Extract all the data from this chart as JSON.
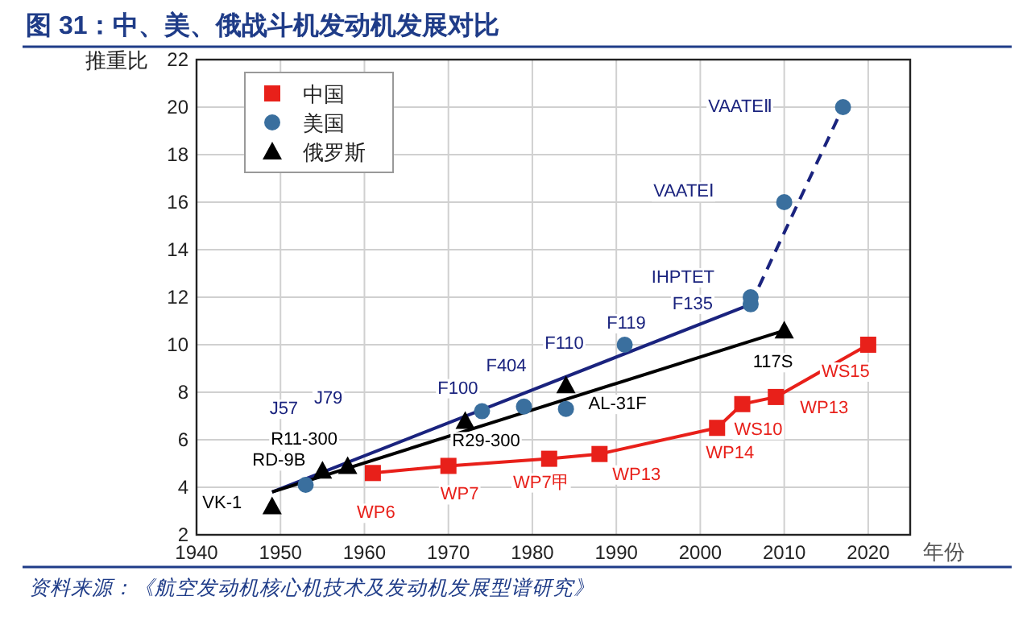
{
  "chart_data": {
    "type": "scatter",
    "title": "图 31：中、美、俄战斗机发动机发展对比",
    "xlabel": "年份",
    "ylabel": "推重比",
    "xlim": [
      1940,
      2025
    ],
    "xticks": [
      1940,
      1950,
      1960,
      1970,
      1980,
      1990,
      2000,
      2010,
      2020
    ],
    "ylim": [
      2,
      22
    ],
    "yticks": [
      2,
      4,
      6,
      8,
      10,
      12,
      14,
      16,
      18,
      20,
      22
    ],
    "grid": true,
    "legend": "top left",
    "series": [
      {
        "name": "中国",
        "type": "line",
        "marker": "square",
        "line_style": "solid",
        "color": "#e8201a",
        "x": [
          1961,
          1970,
          1982,
          1988,
          2002,
          2005,
          2009,
          2020
        ],
        "values": [
          4.6,
          4.9,
          5.2,
          5.4,
          6.5,
          7.5,
          7.8,
          10
        ]
      },
      {
        "name": "美国",
        "marker": "circle",
        "color": "#3a6f9e",
        "x": [
          1953,
          1974,
          1979,
          1984,
          1991,
          2006,
          2006,
          2010,
          2017
        ],
        "values": [
          4.1,
          7.2,
          7.4,
          7.3,
          10,
          11.7,
          12,
          16,
          20
        ]
      },
      {
        "name": "俄罗斯",
        "marker": "triangle",
        "color": "#000000",
        "x": [
          1949,
          1955,
          1958,
          1972,
          1984,
          2010
        ],
        "values": [
          3.2,
          4.7,
          4.9,
          6.8,
          8.3,
          10.6
        ]
      },
      {
        "type": "line",
        "marker": "none",
        "line_style": "solid",
        "color": "#1a237e",
        "x": [
          1949,
          2006
        ],
        "values": [
          3.8,
          11.7
        ]
      },
      {
        "type": "line",
        "marker": "none",
        "line_style": "dashed",
        "color": "#1a237e",
        "x": [
          2006,
          2017
        ],
        "values": [
          11.7,
          20
        ]
      },
      {
        "type": "line",
        "marker": "none",
        "line_style": "solid",
        "color": "#000000",
        "x": [
          1949,
          2010
        ],
        "values": [
          3.8,
          10.6
        ]
      }
    ],
    "annotations": [
      {
        "text": "VK-1",
        "x": 1949,
        "y": 3.2
      },
      {
        "text": "RD-9B",
        "x": 1955,
        "y": 4.7
      },
      {
        "text": "R11-300",
        "x": 1958,
        "y": 4.9
      },
      {
        "text": "J57",
        "x": 1950.4,
        "y": 7.35
      },
      {
        "text": "J79",
        "x": 1955.7,
        "y": 7.8
      },
      {
        "text": "WP6",
        "x": 1961,
        "y": 4.6
      },
      {
        "text": "WP7",
        "x": 1970,
        "y": 4.9
      },
      {
        "text": "F100",
        "x": 1974,
        "y": 7.2
      },
      {
        "text": "R29-300",
        "x": 1972,
        "y": 6.8
      },
      {
        "text": "F404",
        "x": 1979,
        "y": 7.4
      },
      {
        "text": "F110",
        "x": 1983.8,
        "y": 10.1
      },
      {
        "text": "AL-31F",
        "x": 1984,
        "y": 8.3
      },
      {
        "text": "WP7甲",
        "x": 1982,
        "y": 5.2
      },
      {
        "text": "WP13",
        "x": 1988,
        "y": 5.4
      },
      {
        "text": "F119",
        "x": 1991,
        "y": 10
      },
      {
        "text": "WP14",
        "x": 2002,
        "y": 6.5
      },
      {
        "text": "WS10",
        "x": 2005,
        "y": 7.5
      },
      {
        "text": "WP13",
        "x": 2009,
        "y": 7.8
      },
      {
        "text": "WS15",
        "x": 2020,
        "y": 10
      },
      {
        "text": "117S",
        "x": 2010,
        "y": 10.6
      },
      {
        "text": "F135",
        "x": 2006,
        "y": 11.7
      },
      {
        "text": "IHPTET",
        "x": 2006,
        "y": 12
      },
      {
        "text": "VAATEⅠ",
        "x": 1998,
        "y": 16.5
      },
      "VAATEⅡ",
      "资料来源：《航空发动机核心机技术及发动机发展型谱研究》"
    ]
  }
}
